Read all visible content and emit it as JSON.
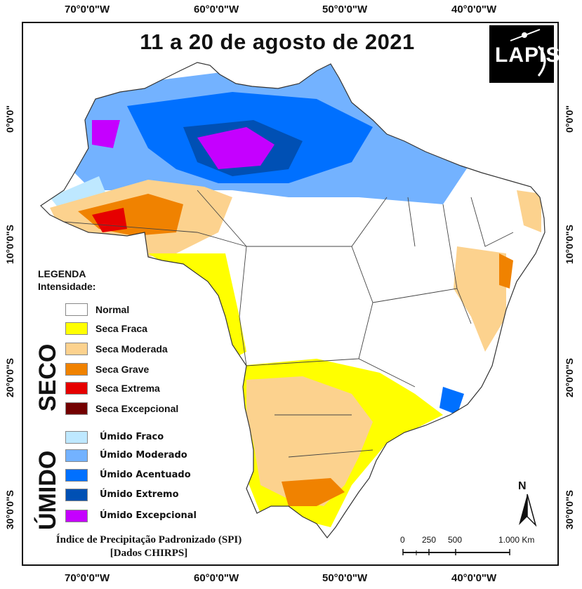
{
  "title": "11 a 20 de agosto de 2021",
  "logo_text": "LAPIS",
  "lon_ticks": [
    "70°0'0\"W",
    "60°0'0\"W",
    "50°0'0\"W",
    "40°0'0\"W"
  ],
  "lat_ticks": [
    "0°0'0\"",
    "10°0'0\"S",
    "20°0'0\"S",
    "30°0'0\"S"
  ],
  "legend": {
    "title": "LEGENDA",
    "subtitle": "Intensidade:",
    "group_dry": "SECO",
    "group_wet": "ÚMIDO",
    "items": [
      {
        "label": "Normal",
        "color": "#ffffff"
      },
      {
        "label": "Seca Fraca",
        "color": "#ffff00"
      },
      {
        "label": "Seca Moderada",
        "color": "#fcd28e"
      },
      {
        "label": "Seca Grave",
        "color": "#f08200"
      },
      {
        "label": "Seca Extrema",
        "color": "#e60000"
      },
      {
        "label": "Seca Excepcional",
        "color": "#730000"
      },
      {
        "label": "Úmido Fraco",
        "color": "#bee8ff"
      },
      {
        "label": "Úmido Moderado",
        "color": "#73b2ff"
      },
      {
        "label": "Úmido Acentuado",
        "color": "#0070ff"
      },
      {
        "label": "Úmido Extremo",
        "color": "#0050b4"
      },
      {
        "label": "Úmido Excepcional",
        "color": "#c500ff"
      }
    ]
  },
  "footer": {
    "line1": "Índice de Precipitação Padronizado (SPI)",
    "line2": "[Dados CHIRPS]"
  },
  "scale_bar": {
    "labels": [
      "0",
      "250",
      "500",
      "1.000 Km"
    ]
  },
  "north_arrow": "N"
}
